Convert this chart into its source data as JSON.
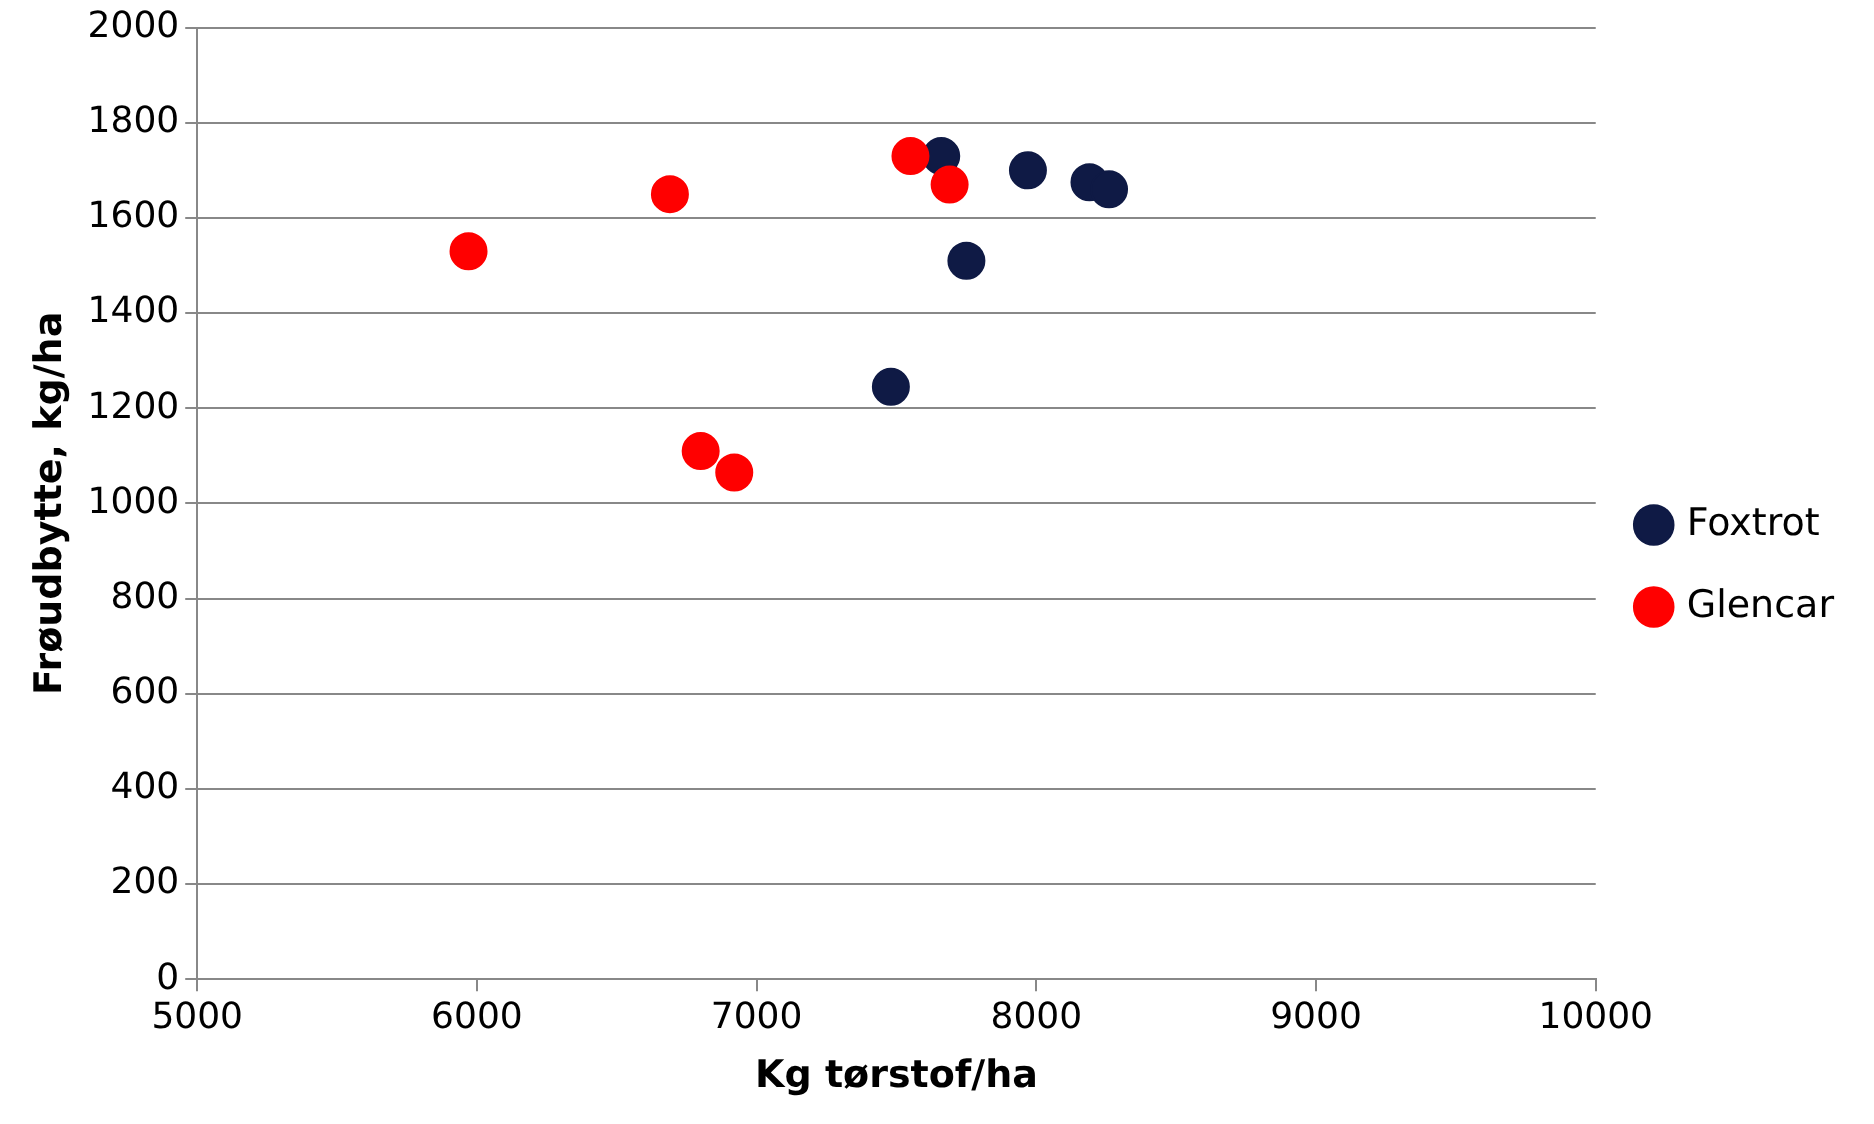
{
  "chart_data": {
    "type": "scatter",
    "xlabel": "Kg tørstof/ha",
    "ylabel": "Frøudbytte, kg/ha",
    "series": [
      {
        "name": "Foxtrot",
        "color": "#0f1a45",
        "x": [
          7660,
          7970,
          8190,
          8260,
          7750,
          7480
        ],
        "values": [
          1730,
          1700,
          1675,
          1660,
          1510,
          1245
        ]
      },
      {
        "name": "Glencar",
        "color": "#ff0000",
        "x": [
          5970,
          6690,
          7550,
          7690,
          6800,
          6920
        ],
        "values": [
          1530,
          1650,
          1730,
          1670,
          1110,
          1065
        ]
      }
    ],
    "xlim": [
      5000,
      10000
    ],
    "xticks": [
      5000,
      6000,
      7000,
      8000,
      9000,
      10000
    ],
    "ylim": [
      0,
      2000
    ],
    "yticks": [
      0,
      200,
      400,
      600,
      800,
      1000,
      1200,
      1400,
      1600,
      1800,
      2000
    ],
    "grid": "y",
    "legend": "right",
    "marker": "circle"
  }
}
